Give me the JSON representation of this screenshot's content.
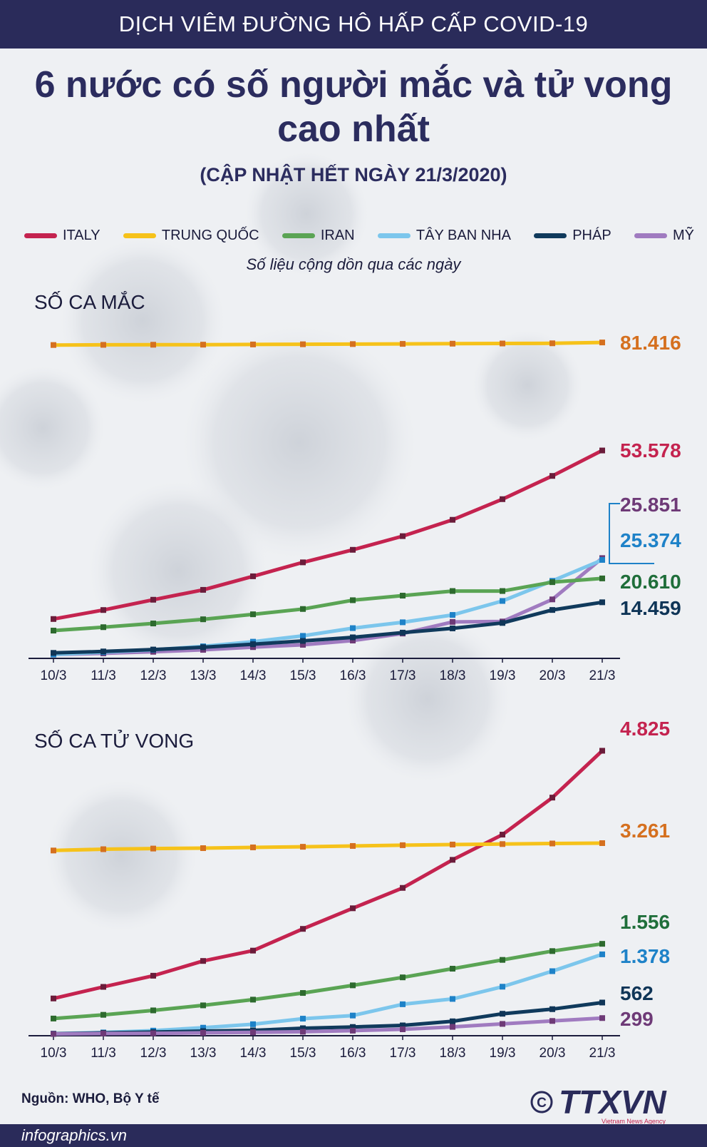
{
  "banner": "DỊCH VIÊM ĐƯỜNG HÔ HẤP CẤP COVID-19",
  "title_line1": "6 nước có số người mắc và tử vong",
  "title_line2": "cao nhất",
  "subtitle": "(CẬP NHẬT HẾT NGÀY 21/3/2020)",
  "legend": [
    {
      "label": "ITALY",
      "color": "#c4234f"
    },
    {
      "label": "TRUNG QUỐC",
      "color": "#f6c21a"
    },
    {
      "label": "IRAN",
      "color": "#5aa454"
    },
    {
      "label": "TÂY BAN NHA",
      "color": "#7cc6ec"
    },
    {
      "label": "PHÁP",
      "color": "#103a5c"
    },
    {
      "label": "MỸ",
      "color": "#a07bc0"
    }
  ],
  "note": "Số liệu cộng dồn qua các ngày",
  "colors": {
    "navy": "#2a2b5a",
    "label_china": "#d5701f",
    "label_spain": "#1e82c8",
    "label_usa": "#6e3a77",
    "label_iran": "#1f6e3a",
    "label_france": "#0f3557",
    "label_italy": "#c4234f"
  },
  "chart_data": [
    {
      "type": "line",
      "title": "SỐ CA MẮC",
      "x": [
        "10/3",
        "11/3",
        "12/3",
        "13/3",
        "14/3",
        "15/3",
        "16/3",
        "17/3",
        "18/3",
        "19/3",
        "20/3",
        "21/3"
      ],
      "series": [
        {
          "name": "TRUNG QUỐC",
          "values": [
            80757,
            80800,
            80830,
            80850,
            80900,
            80950,
            81000,
            81050,
            81100,
            81150,
            81200,
            81416
          ],
          "end_label": "81.416"
        },
        {
          "name": "ITALY",
          "values": [
            10149,
            12462,
            15113,
            17660,
            21157,
            24747,
            27980,
            31506,
            35713,
            41035,
            47021,
            53578
          ],
          "end_label": "53.578"
        },
        {
          "name": "MỸ",
          "values": [
            1000,
            1300,
            1700,
            2200,
            2900,
            3500,
            4600,
            6400,
            9400,
            9500,
            15200,
            25851
          ],
          "end_label": "25.851"
        },
        {
          "name": "TÂY BAN NHA",
          "values": [
            1000,
            1600,
            2200,
            3100,
            4300,
            5800,
            7800,
            9300,
            11200,
            14800,
            19980,
            25374
          ],
          "end_label": "25.374"
        },
        {
          "name": "IRAN",
          "values": [
            7161,
            8042,
            9000,
            10075,
            11364,
            12729,
            14991,
            16169,
            17361,
            17361,
            19644,
            20610
          ],
          "end_label": "20.610"
        },
        {
          "name": "PHÁP",
          "values": [
            1412,
            1784,
            2281,
            2876,
            3661,
            4500,
            5423,
            6633,
            7730,
            9134,
            12475,
            14459
          ],
          "end_label": "14.459"
        }
      ],
      "ylim": [
        0,
        85000
      ]
    },
    {
      "type": "line",
      "title": "SỐ CA TỬ VONG",
      "x": [
        "10/3",
        "11/3",
        "12/3",
        "13/3",
        "14/3",
        "15/3",
        "16/3",
        "17/3",
        "18/3",
        "19/3",
        "20/3",
        "21/3"
      ],
      "series": [
        {
          "name": "ITALY",
          "values": [
            631,
            827,
            1016,
            1266,
            1441,
            1809,
            2158,
            2503,
            2978,
            3405,
            4032,
            4825
          ],
          "end_label": "4.825"
        },
        {
          "name": "TRUNG QUỐC",
          "values": [
            3136,
            3158,
            3169,
            3176,
            3189,
            3199,
            3213,
            3226,
            3237,
            3245,
            3255,
            3261
          ],
          "end_label": "3.261"
        },
        {
          "name": "IRAN",
          "values": [
            291,
            354,
            429,
            514,
            611,
            724,
            853,
            988,
            1135,
            1284,
            1433,
            1556
          ],
          "end_label": "1.556"
        },
        {
          "name": "TÂY BAN NHA",
          "values": [
            35,
            55,
            86,
            136,
            195,
            289,
            342,
            533,
            623,
            830,
            1093,
            1378
          ],
          "end_label": "1.378"
        },
        {
          "name": "PHÁP",
          "values": [
            33,
            48,
            61,
            79,
            91,
            127,
            148,
            175,
            244,
            372,
            450,
            562
          ],
          "end_label": "562"
        },
        {
          "name": "MỸ",
          "values": [
            30,
            38,
            41,
            49,
            57,
            68,
            86,
            109,
            150,
            200,
            250,
            299
          ],
          "end_label": "299"
        }
      ],
      "ylim": [
        0,
        5000
      ]
    }
  ],
  "source": "Nguồn: WHO, Bộ Y tế",
  "logo_text": "TTXVN",
  "logo_subtext": "Vietnam News Agency",
  "footer": "infographics.vn"
}
